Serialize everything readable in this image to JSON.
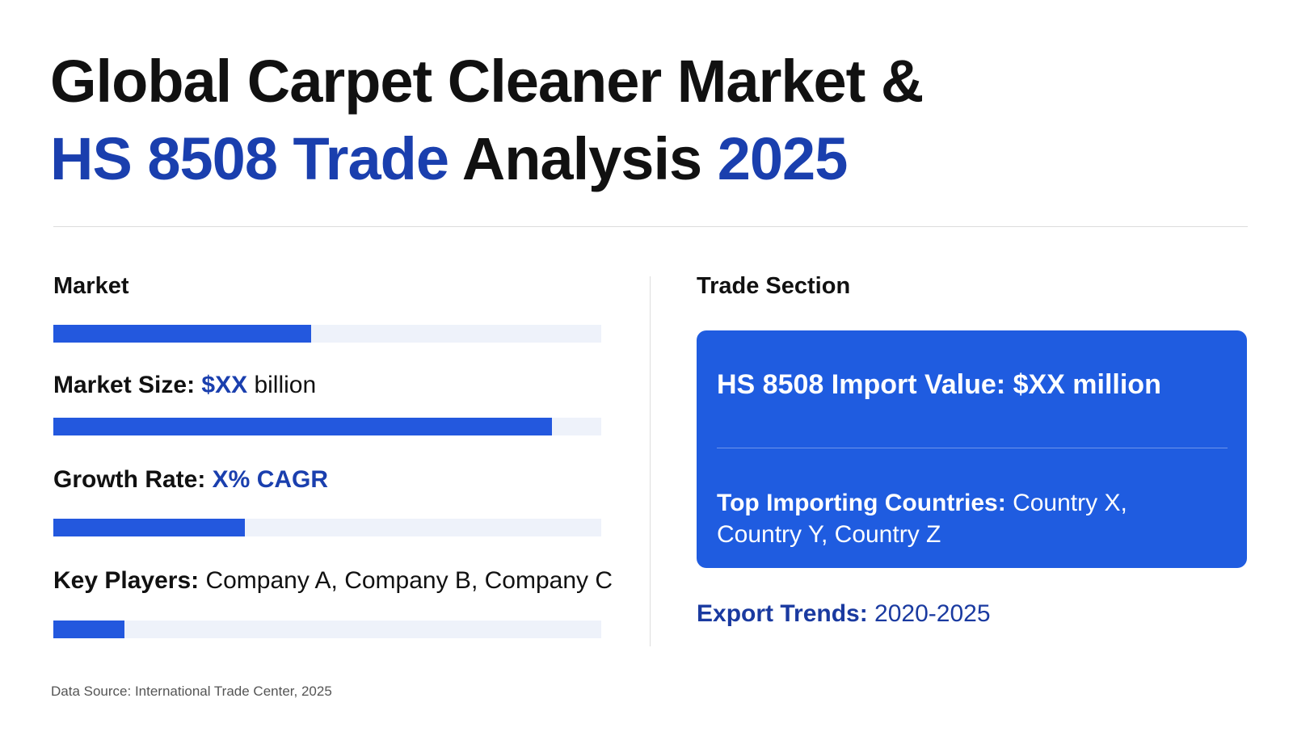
{
  "header": {
    "title_line1": [
      {
        "text": "Global Carpet Cleaner Market &",
        "color": "#111111"
      }
    ],
    "title_line2": [
      {
        "text": "HS 8508 Trade",
        "color": "#1a3fae"
      },
      {
        "text": " Analysis ",
        "color": "#111111"
      },
      {
        "text": "2025",
        "color": "#1a3fae"
      }
    ]
  },
  "market": {
    "heading": "Market",
    "bar_percent": [
      47,
      91,
      35,
      13
    ],
    "rows": [
      [
        {
          "text": "Market Size: ",
          "style": "bold"
        },
        {
          "text": "$XX",
          "style": "accent"
        },
        {
          "text": " billion",
          "style": "plain"
        }
      ],
      [
        {
          "text": "Growth Rate: ",
          "style": "bold"
        },
        {
          "text": "X% CAGR",
          "style": "accent"
        }
      ],
      [
        {
          "text": "Key Players: ",
          "style": "bold"
        },
        {
          "text": "Company A, Company B, Company C",
          "style": "plain"
        }
      ]
    ]
  },
  "trade": {
    "heading": "Trade Section",
    "card_title": "HS 8508 Import Value: $XX million",
    "card_body": [
      {
        "text": "Top Importing Countries: ",
        "style": "bold"
      },
      {
        "text": "Country X, Country Y, Country Z",
        "style": "plain"
      }
    ],
    "export": [
      {
        "text": "Export Trends: ",
        "style": "bold"
      },
      {
        "text": "2020-2025",
        "style": "plain"
      }
    ]
  },
  "footer": {
    "source": "Data Source: International Trade Center, 2025"
  }
}
